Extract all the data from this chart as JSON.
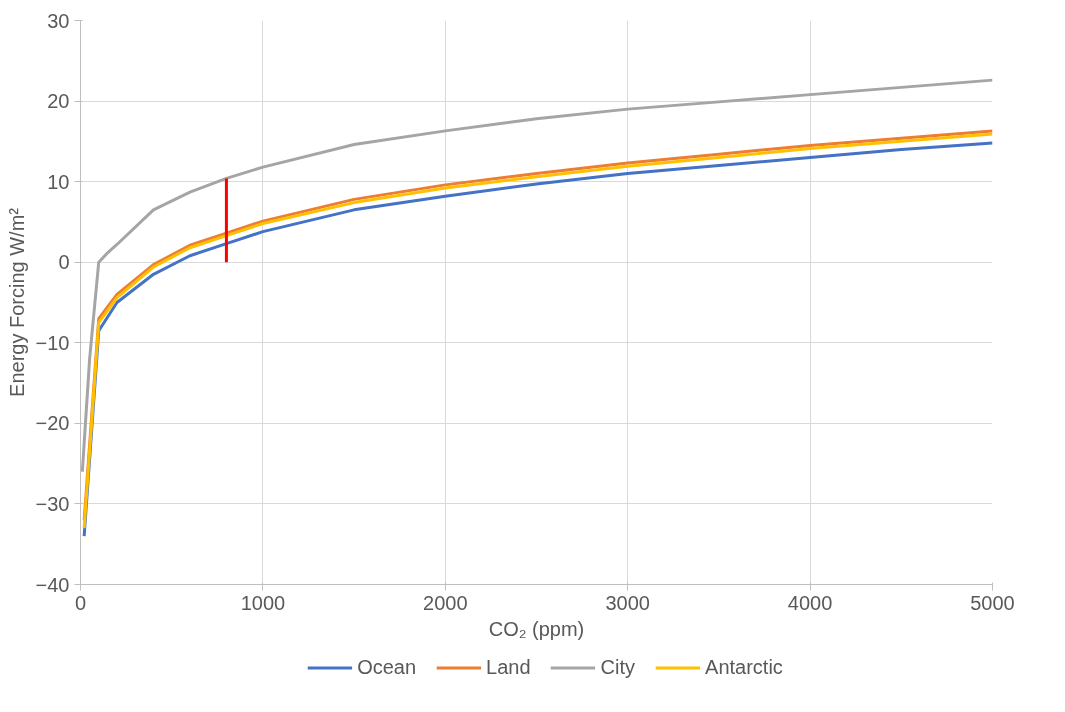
{
  "chart_data": {
    "type": "line",
    "xlabel": "CO₂ (ppm)",
    "ylabel": "Energy Forcing W/m²",
    "xlim": [
      0,
      5000
    ],
    "xticks": [
      0,
      1000,
      2000,
      3000,
      4000,
      5000
    ],
    "ylim": [
      -40,
      30
    ],
    "yticks": [
      -40,
      -30,
      -20,
      -10,
      0,
      10,
      20,
      30
    ],
    "grid": true,
    "legend": "bottom",
    "line_style": "solid",
    "x": [
      20,
      100,
      200,
      400,
      600,
      800,
      1000,
      1500,
      2000,
      2500,
      3000,
      3500,
      4000,
      4500,
      5000
    ],
    "series": [
      {
        "name": "Ocean",
        "color": "#4472c4",
        "values": [
          -34,
          -8.5,
          -5,
          -1.5,
          0.8,
          2.3,
          3.8,
          6.5,
          8.2,
          9.7,
          11,
          12,
          13,
          14,
          14.8
        ]
      },
      {
        "name": "Land",
        "color": "#ed7d31",
        "values": [
          -32,
          -7,
          -4,
          -0.3,
          2.1,
          3.6,
          5.1,
          7.8,
          9.6,
          11,
          12.3,
          13.4,
          14.5,
          15.4,
          16.3
        ]
      },
      {
        "name": "City",
        "color": "#a5a5a5",
        "x": [
          10,
          50,
          100,
          150,
          200,
          400,
          600,
          800,
          1000,
          1500,
          2000,
          2500,
          3000,
          3500,
          4000,
          4500,
          5000
        ],
        "values": [
          -26,
          -12,
          0,
          1.2,
          2.2,
          6.5,
          8.7,
          10.4,
          11.8,
          14.6,
          16.3,
          17.8,
          19,
          19.9,
          20.8,
          21.7,
          22.6
        ]
      },
      {
        "name": "Antarctic",
        "color": "#ffc000",
        "values": [
          -33,
          -7.5,
          -4.4,
          -0.6,
          1.8,
          3.3,
          4.8,
          7.4,
          9.2,
          10.6,
          11.9,
          13,
          14.1,
          15,
          15.9
        ]
      },
      {
        "color": "#ff0000",
        "x": [
          800,
          800
        ],
        "values": [
          0,
          10.4
        ]
      }
    ]
  }
}
